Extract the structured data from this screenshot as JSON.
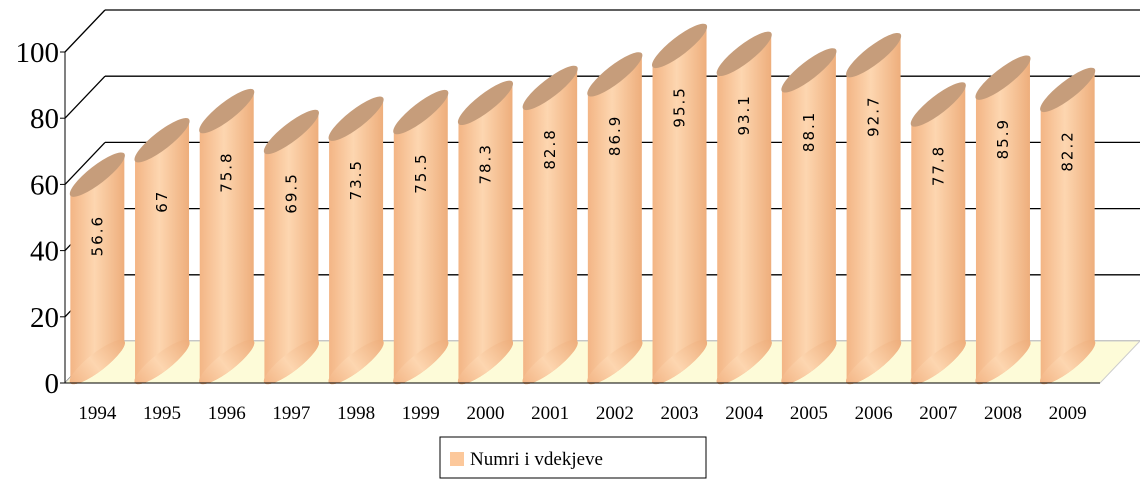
{
  "chart_data": {
    "type": "bar",
    "categories": [
      "1994",
      "1995",
      "1996",
      "1997",
      "1998",
      "1999",
      "2000",
      "2001",
      "2002",
      "2003",
      "2004",
      "2005",
      "2006",
      "2007",
      "2008",
      "2009"
    ],
    "series": [
      {
        "name": "Numri i vdekjeve",
        "color": "#fcc89b",
        "values": [
          56.6,
          67,
          75.8,
          69.5,
          73.5,
          75.5,
          78.3,
          82.8,
          86.9,
          95.5,
          93.1,
          88.1,
          92.7,
          77.8,
          85.9,
          82.2
        ]
      }
    ],
    "ylim": [
      0,
      100
    ],
    "yticks": [
      0,
      20,
      40,
      60,
      80,
      100
    ],
    "grid": true,
    "legend": "bottom"
  }
}
